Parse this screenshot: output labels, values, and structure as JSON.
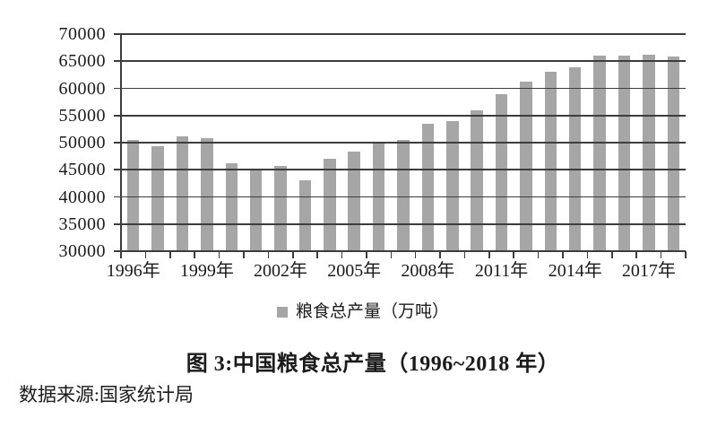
{
  "figure": {
    "title": "图 3:中国粮食总产量（1996~2018 年）",
    "source": "数据来源:国家统计局"
  },
  "legend": {
    "label": "粮食总产量（万吨）",
    "swatch_color": "#a6a6a6"
  },
  "chart_data": {
    "type": "bar",
    "title": "图 3:中国粮食总产量（1996~2018 年）",
    "series_name": "粮食总产量（万吨）",
    "unit": "万吨",
    "categories": [
      "1996年",
      "1997年",
      "1998年",
      "1999年",
      "2000年",
      "2001年",
      "2002年",
      "2003年",
      "2004年",
      "2005年",
      "2006年",
      "2007年",
      "2008年",
      "2009年",
      "2010年",
      "2011年",
      "2012年",
      "2013年",
      "2014年",
      "2015年",
      "2016年",
      "2017年",
      "2018年"
    ],
    "values": [
      50454,
      49417,
      51230,
      50839,
      46218,
      45264,
      45706,
      43070,
      46947,
      48402,
      49804,
      50414,
      53434,
      53941,
      55911,
      58849,
      61223,
      63048,
      63965,
      66060,
      66044,
      66161,
      65789
    ],
    "ylim": [
      30000,
      70000
    ],
    "ytick_step": 5000,
    "ytick_labels": [
      "70000",
      "65000",
      "60000",
      "55000",
      "50000",
      "45000",
      "40000",
      "35000",
      "30000"
    ],
    "xtick_labels": [
      "1996年",
      "1999年",
      "2002年",
      "2005年",
      "2008年",
      "2011年",
      "2014年",
      "2017年"
    ],
    "xtick_label_every": 3,
    "grid": true,
    "gridlines_over_bars": true,
    "legend_position": "bottom",
    "bar_color": "#a6a6a6",
    "axis_color": "#3d3d3d",
    "text_color": "#1b1b1b"
  }
}
